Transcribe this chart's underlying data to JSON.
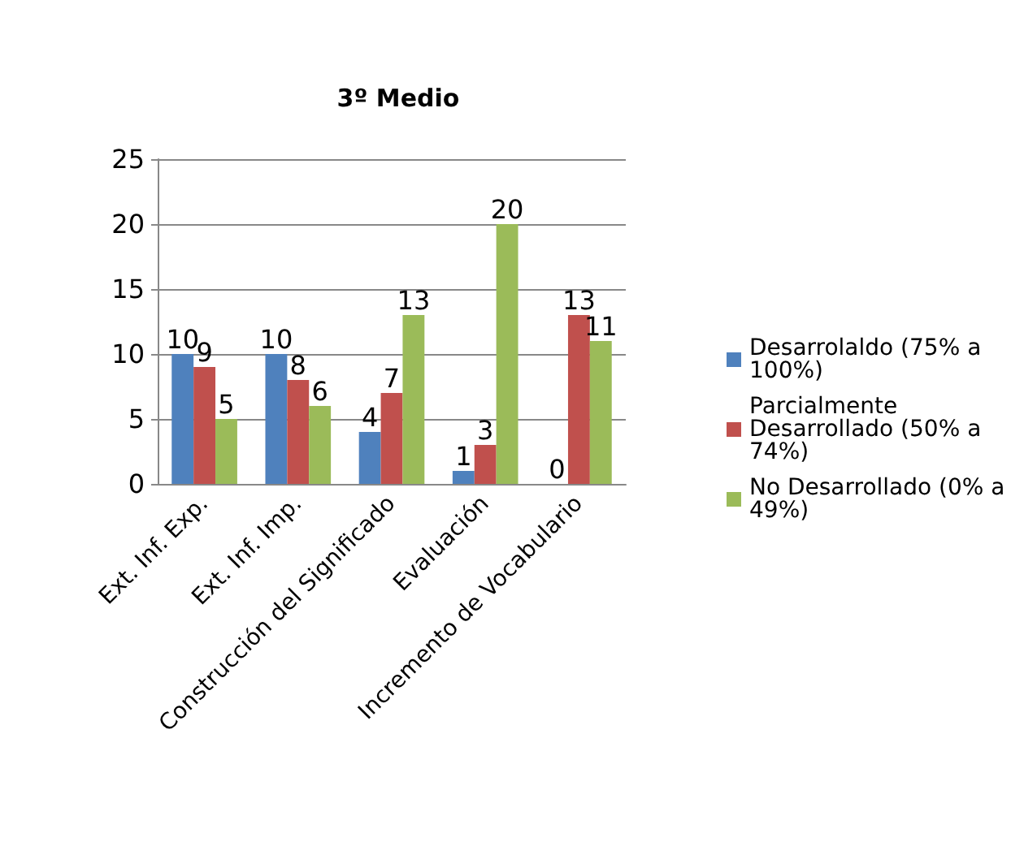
{
  "chart_data": {
    "type": "bar",
    "title": "3º Medio",
    "categories": [
      "Ext. Inf. Exp.",
      "Ext. Inf. Imp.",
      "Construcción del Significado",
      "Evaluación",
      "Incremento de Vocabulario"
    ],
    "series": [
      {
        "name": "Desarrolaldo (75% a 100%)",
        "color": "#4f81bd",
        "values": [
          10,
          10,
          4,
          1,
          0
        ]
      },
      {
        "name": "Parcialmente Desarrollado (50% a 74%)",
        "color": "#c0504d",
        "values": [
          9,
          8,
          7,
          3,
          13
        ]
      },
      {
        "name": "No Desarrollado (0% a 49%)",
        "color": "#9bbb59",
        "values": [
          5,
          6,
          13,
          20,
          11
        ]
      }
    ],
    "ylim": [
      0,
      25
    ],
    "yticks": [
      0,
      5,
      10,
      15,
      20,
      25
    ],
    "grid": "y",
    "legend": "right",
    "data_labels": true
  }
}
